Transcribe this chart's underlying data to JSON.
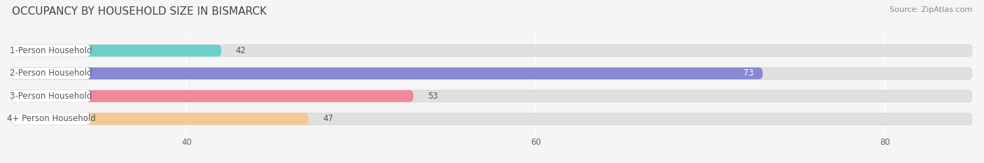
{
  "title": "OCCUPANCY BY HOUSEHOLD SIZE IN BISMARCK",
  "source": "Source: ZipAtlas.com",
  "categories": [
    "1-Person Household",
    "2-Person Household",
    "3-Person Household",
    "4+ Person Household"
  ],
  "values": [
    42,
    73,
    53,
    47
  ],
  "bar_colors": [
    "#6dcfcc",
    "#8888d4",
    "#f08898",
    "#f5c896"
  ],
  "xlim_min": 30,
  "xlim_max": 85,
  "xticks": [
    40,
    60,
    80
  ],
  "bar_height": 0.52,
  "figsize": [
    14.06,
    2.33
  ],
  "dpi": 100,
  "bg_color": "#f5f5f5",
  "track_color": "#e0e0e0",
  "pill_color": "#ffffff",
  "label_color": "#555555",
  "value_color_inside": "#ffffff",
  "value_color_outside": "#555555",
  "title_color": "#444444",
  "source_color": "#888888",
  "title_fontsize": 11,
  "label_fontsize": 8.5,
  "value_fontsize": 8.5,
  "tick_fontsize": 8.5
}
